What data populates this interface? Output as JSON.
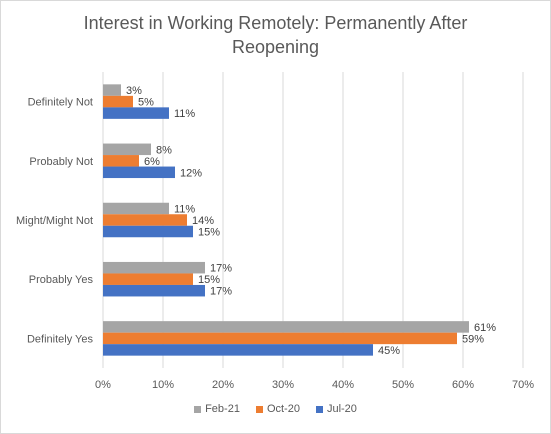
{
  "chart_data": {
    "type": "bar",
    "orientation": "horizontal",
    "title": "Interest in Working Remotely: Permanently After\nReopening",
    "categories": [
      "Definitely Not",
      "Probably Not",
      "Might/Might Not",
      "Probably Yes",
      "Definitely Yes"
    ],
    "series": [
      {
        "name": "Feb-21",
        "color": "#a5a5a5",
        "values": [
          3,
          8,
          11,
          17,
          61
        ],
        "labels": [
          "3%",
          "8%",
          "11%",
          "17%",
          "61%"
        ]
      },
      {
        "name": "Oct-20",
        "color": "#ed7d31",
        "values": [
          5,
          6,
          14,
          15,
          59
        ],
        "labels": [
          "5%",
          "6%",
          "14%",
          "15%",
          "59%"
        ]
      },
      {
        "name": "Jul-20",
        "color": "#4472c4",
        "values": [
          11,
          12,
          15,
          17,
          45
        ],
        "labels": [
          "11%",
          "12%",
          "15%",
          "17%",
          "45%"
        ]
      }
    ],
    "xlim": [
      0,
      70
    ],
    "x_ticks": [
      0,
      10,
      20,
      30,
      40,
      50,
      60,
      70
    ],
    "x_tick_labels": [
      "0%",
      "10%",
      "20%",
      "30%",
      "40%",
      "50%",
      "60%",
      "70%"
    ],
    "grid": true,
    "legend_position": "bottom",
    "legend_order": [
      "Feb-21",
      "Oct-20",
      "Jul-20"
    ]
  }
}
